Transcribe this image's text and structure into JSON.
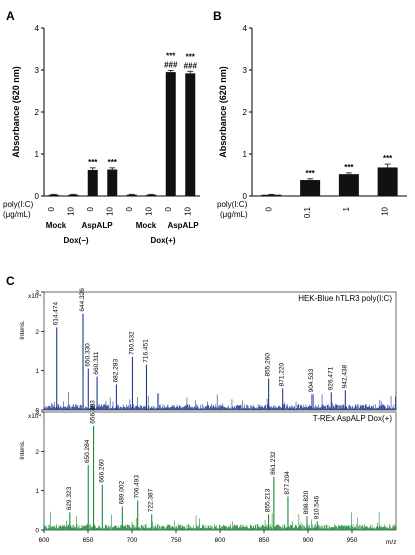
{
  "chart_data": [
    {
      "panel": "A",
      "type": "bar",
      "ylabel": "Absorbance (620 nm)",
      "ylim": [
        0,
        4
      ],
      "yticks": [
        "0",
        "1",
        "2",
        "3",
        "4"
      ],
      "row_label_1": "poly(I:C)",
      "row_label_2": "(μg/mL)",
      "categories": [
        "0",
        "10",
        "0",
        "10",
        "0",
        "10",
        "0",
        "10"
      ],
      "values": [
        0.03,
        0.03,
        0.62,
        0.63,
        0.03,
        0.03,
        2.95,
        2.92
      ],
      "errors": [
        0.01,
        0.01,
        0.05,
        0.04,
        0.01,
        0.01,
        0.04,
        0.05
      ],
      "annotations": [
        "",
        "",
        "***",
        "***",
        "",
        "",
        "***\n###",
        "***\n###"
      ],
      "group_labels": [
        "Mock",
        "AspALP",
        "Mock",
        "AspALP"
      ],
      "condition_labels": [
        "Dox(−)",
        "Dox(+)"
      ]
    },
    {
      "panel": "B",
      "type": "bar",
      "ylabel": "Absorbance (620 nm)",
      "ylim": [
        0,
        4
      ],
      "yticks": [
        "0",
        "1",
        "2",
        "3",
        "4"
      ],
      "row_label_1": "poly(I:C)",
      "row_label_2": "(μg/mL)",
      "categories": [
        "0",
        "0.1",
        "1",
        "10"
      ],
      "values": [
        0.03,
        0.38,
        0.52,
        0.68
      ],
      "errors": [
        0.01,
        0.03,
        0.03,
        0.08
      ],
      "annotations": [
        "",
        "***",
        "***",
        "***"
      ]
    },
    {
      "panel": "C",
      "type": "line",
      "x_axis_label": "m/z",
      "xlim": [
        600,
        1000
      ],
      "xticks": [
        "600",
        "650",
        "700",
        "750",
        "800",
        "850",
        "900",
        "950"
      ],
      "y_axis_label": "Intens.",
      "y_scale_label": "x10⁴",
      "top": {
        "title": "HEK-Blue hTLR3 poly(I:C)",
        "yticks": [
          "0",
          "1",
          "2",
          "3"
        ],
        "ylim": [
          0,
          3
        ],
        "color": "#1f3c8f",
        "peaks": [
          {
            "x": 614.474,
            "y": 2.1,
            "label": "614.474"
          },
          {
            "x": 644.326,
            "y": 2.45,
            "label": "644.326"
          },
          {
            "x": 650.33,
            "y": 1.05,
            "label": "650.330"
          },
          {
            "x": 660.311,
            "y": 0.85,
            "label": "660.311"
          },
          {
            "x": 682.283,
            "y": 0.65,
            "label": "682.283"
          },
          {
            "x": 700.532,
            "y": 1.35,
            "label": "700.532"
          },
          {
            "x": 716.451,
            "y": 1.15,
            "label": "716.451"
          },
          {
            "x": 855.26,
            "y": 0.8,
            "label": "855.260"
          },
          {
            "x": 871.22,
            "y": 0.55,
            "label": "871.220"
          },
          {
            "x": 904.533,
            "y": 0.4,
            "label": "904.533"
          },
          {
            "x": 926.471,
            "y": 0.45,
            "label": "926.471"
          },
          {
            "x": 942.438,
            "y": 0.5,
            "label": "942.438"
          }
        ]
      },
      "bottom": {
        "title": "T-REx AspALP Dox(+)",
        "yticks": [
          "0",
          "1",
          "2",
          "3"
        ],
        "ylim": [
          0,
          3
        ],
        "color": "#1f8a3a",
        "peaks": [
          {
            "x": 629.323,
            "y": 0.45,
            "label": "629.323"
          },
          {
            "x": 656.303,
            "y": 2.65,
            "label": "656.303"
          },
          {
            "x": 650.284,
            "y": 1.65,
            "label": "650.284"
          },
          {
            "x": 666.26,
            "y": 1.15,
            "label": "666.260"
          },
          {
            "x": 689.002,
            "y": 0.6,
            "label": "689.002"
          },
          {
            "x": 706.493,
            "y": 0.75,
            "label": "706.493"
          },
          {
            "x": 722.387,
            "y": 0.4,
            "label": "722.387"
          },
          {
            "x": 861.232,
            "y": 1.35,
            "label": "861.232"
          },
          {
            "x": 855.213,
            "y": 0.4,
            "label": "855.213"
          },
          {
            "x": 877.204,
            "y": 0.85,
            "label": "877.204"
          },
          {
            "x": 898.82,
            "y": 0.35,
            "label": "898.820"
          },
          {
            "x": 910.546,
            "y": 0.22,
            "label": "910.546"
          }
        ]
      }
    }
  ]
}
